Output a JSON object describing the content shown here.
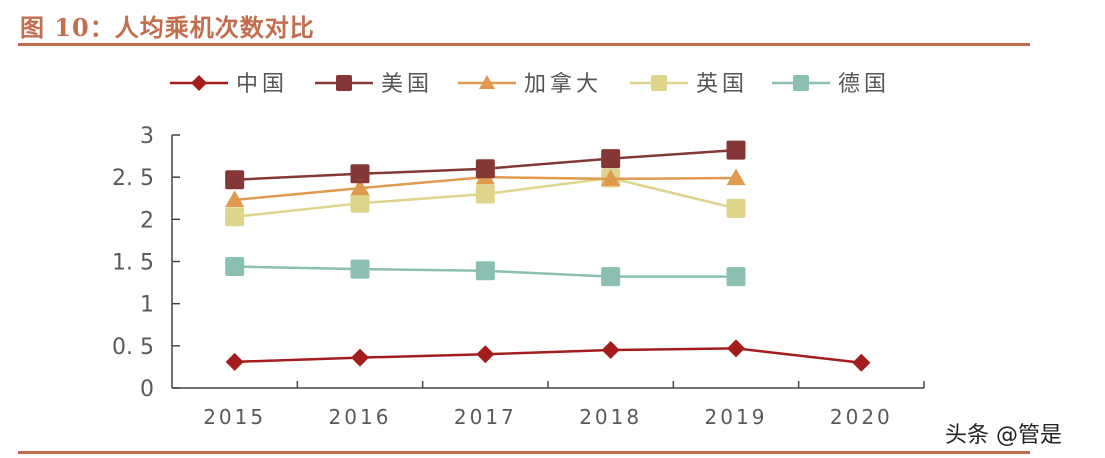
{
  "header": {
    "title": "图 10：人均乘机次数对比"
  },
  "watermark": "头条 @管是",
  "colors": {
    "accent": "#c26d4e",
    "china": "#a31d1d",
    "usa": "#843734",
    "canada": "#e0994d",
    "uk": "#dfd48c",
    "germany": "#8bbfb2",
    "axis": "#444444",
    "tick_text": "#595959"
  },
  "chart_data": {
    "type": "line",
    "title": "人均乘机次数对比",
    "xlabel": "",
    "ylabel": "",
    "categories": [
      "2015",
      "2016",
      "2017",
      "2018",
      "2019",
      "2020"
    ],
    "yticks": [
      "0",
      "0.5",
      "1",
      "1.5",
      "2",
      "2.5",
      "3"
    ],
    "ylim": [
      0,
      3
    ],
    "grid": false,
    "legend_position": "top",
    "series": [
      {
        "name": "中国",
        "marker": "diamond",
        "color": "#a31d1d",
        "values": [
          0.31,
          0.36,
          0.4,
          0.45,
          0.47,
          0.3
        ]
      },
      {
        "name": "美国",
        "marker": "square",
        "color": "#843734",
        "values": [
          2.47,
          2.54,
          2.6,
          2.72,
          2.82,
          null
        ]
      },
      {
        "name": "加拿大",
        "marker": "triangle",
        "color": "#e0994d",
        "values": [
          2.23,
          2.37,
          2.5,
          2.48,
          2.49,
          null
        ]
      },
      {
        "name": "英国",
        "marker": "square",
        "color": "#dfd48c",
        "values": [
          2.03,
          2.19,
          2.3,
          2.49,
          2.13,
          null
        ]
      },
      {
        "name": "德国",
        "marker": "square",
        "color": "#8bbfb2",
        "values": [
          1.44,
          1.41,
          1.39,
          1.32,
          1.32,
          null
        ]
      }
    ]
  }
}
